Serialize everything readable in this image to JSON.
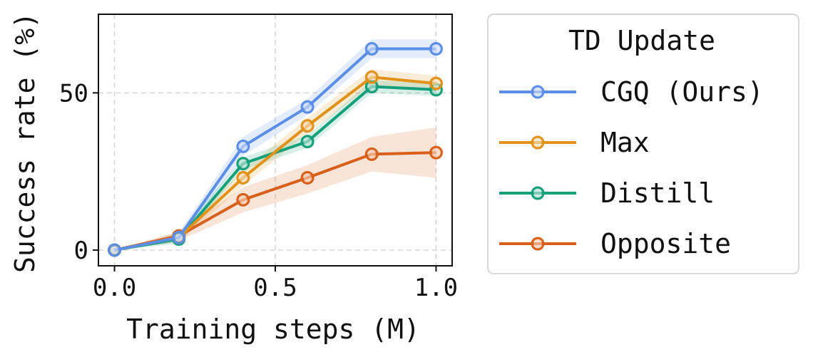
{
  "chart_data": {
    "type": "line",
    "xlabel": "Training steps (M)",
    "ylabel": "Success rate (%)",
    "xlim": [
      -0.05,
      1.05
    ],
    "ylim": [
      -5,
      75
    ],
    "xticks": [
      0.0,
      0.5,
      1.0
    ],
    "xtick_labels": [
      "0.0",
      "0.5",
      "1.0"
    ],
    "yticks": [
      0,
      50
    ],
    "ytick_labels": [
      "0",
      "50"
    ],
    "grid": true,
    "legend": {
      "title": "TD Update",
      "placement": "outside-right"
    },
    "x": [
      0.0,
      0.2,
      0.4,
      0.6,
      0.8,
      1.0
    ],
    "series": [
      {
        "name": "CGQ (Ours)",
        "color": "#5b8ee6",
        "values": [
          0,
          4,
          33,
          45.5,
          64,
          64
        ],
        "lower": [
          0,
          2.5,
          30,
          43,
          61,
          61
        ],
        "upper": [
          0,
          5.5,
          36,
          48,
          67,
          67
        ]
      },
      {
        "name": "Max",
        "color": "#e0921a",
        "values": [
          0,
          4,
          23,
          39.5,
          55,
          53
        ],
        "lower": [
          0,
          2.5,
          20.5,
          37,
          52.5,
          50.5
        ],
        "upper": [
          0,
          5.5,
          25.5,
          42,
          57.5,
          55.5
        ]
      },
      {
        "name": "Distill",
        "color": "#16a07a",
        "values": [
          0,
          3.5,
          27.5,
          34.5,
          52,
          51
        ],
        "lower": [
          0,
          2,
          25.5,
          32.5,
          50,
          49
        ],
        "upper": [
          0,
          5,
          29.5,
          36.5,
          54,
          53
        ]
      },
      {
        "name": "Opposite",
        "color": "#d9601a",
        "values": [
          0,
          4.5,
          16,
          23,
          30.5,
          31
        ],
        "lower": [
          0,
          3,
          12,
          18,
          25,
          23
        ],
        "upper": [
          0,
          6,
          20,
          27,
          36,
          39
        ]
      }
    ]
  }
}
